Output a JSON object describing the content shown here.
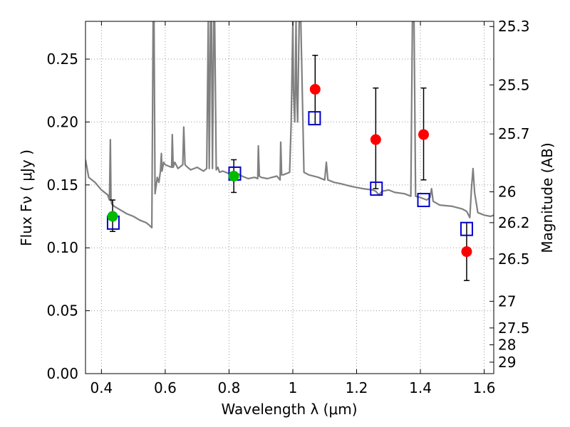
{
  "chart_data": {
    "type": "scatter",
    "xlabel": "Wavelength  λ (μm)",
    "ylabel": "Flux  Fν  ( μJy )",
    "y2label": "Magnitude (AB)",
    "xlim": [
      0.35,
      1.63
    ],
    "ylim": [
      0.0,
      0.28
    ],
    "grid": true,
    "x_ticks": [
      {
        "value": 0.4,
        "label": "0.4"
      },
      {
        "value": 0.6,
        "label": "0.6"
      },
      {
        "value": 0.8,
        "label": "0.8"
      },
      {
        "value": 1.0,
        "label": "1"
      },
      {
        "value": 1.2,
        "label": "1.2"
      },
      {
        "value": 1.4,
        "label": "1.4"
      },
      {
        "value": 1.6,
        "label": "1.6"
      }
    ],
    "y_ticks": [
      {
        "value": 0.0,
        "label": "0.00"
      },
      {
        "value": 0.05,
        "label": "0.05"
      },
      {
        "value": 0.1,
        "label": "0.10"
      },
      {
        "value": 0.15,
        "label": "0.15"
      },
      {
        "value": 0.2,
        "label": "0.20"
      },
      {
        "value": 0.25,
        "label": "0.25"
      }
    ],
    "y2_ticks": [
      {
        "flux": 0.2759,
        "label": "25.3"
      },
      {
        "flux": 0.2295,
        "label": "25.5"
      },
      {
        "flux": 0.1905,
        "label": "25.7"
      },
      {
        "flux": 0.1445,
        "label": "26"
      },
      {
        "flux": 0.12,
        "label": "26.2"
      },
      {
        "flux": 0.0912,
        "label": "26.5"
      },
      {
        "flux": 0.0575,
        "label": "27"
      },
      {
        "flux": 0.0363,
        "label": "27.5"
      },
      {
        "flux": 0.0229,
        "label": "28"
      },
      {
        "flux": 0.0091,
        "label": "29"
      }
    ],
    "colors": {
      "model": "#808080",
      "green": "#00bb00",
      "red": "#ff0000",
      "square": "#0000cc",
      "grid": "#999999"
    },
    "model_spectrum": {
      "x": [
        0.35,
        0.36,
        0.38,
        0.4,
        0.42,
        0.425,
        0.428,
        0.43,
        0.432,
        0.44,
        0.46,
        0.48,
        0.5,
        0.52,
        0.54,
        0.55,
        0.558,
        0.562,
        0.565,
        0.568,
        0.575,
        0.58,
        0.585,
        0.588,
        0.59,
        0.595,
        0.6,
        0.62,
        0.622,
        0.625,
        0.63,
        0.64,
        0.655,
        0.658,
        0.662,
        0.67,
        0.68,
        0.7,
        0.72,
        0.73,
        0.735,
        0.738,
        0.742,
        0.745,
        0.748,
        0.752,
        0.755,
        0.76,
        0.765,
        0.77,
        0.78,
        0.8,
        0.82,
        0.84,
        0.86,
        0.88,
        0.89,
        0.892,
        0.895,
        0.9,
        0.92,
        0.95,
        0.96,
        0.962,
        0.965,
        0.97,
        0.99,
        0.995,
        1.0,
        1.002,
        1.006,
        1.01,
        1.012,
        1.015,
        1.02,
        1.025,
        1.035,
        1.05,
        1.08,
        1.1,
        1.105,
        1.11,
        1.13,
        1.15,
        1.18,
        1.2,
        1.22,
        1.25,
        1.26,
        1.27,
        1.28,
        1.3,
        1.32,
        1.35,
        1.37,
        1.375,
        1.38,
        1.385,
        1.4,
        1.42,
        1.43,
        1.435,
        1.44,
        1.46,
        1.5,
        1.53,
        1.545,
        1.555,
        1.56,
        1.565,
        1.57,
        1.58,
        1.6,
        1.62,
        1.63
      ],
      "y": [
        0.17,
        0.156,
        0.152,
        0.146,
        0.142,
        0.138,
        0.186,
        0.138,
        0.135,
        0.133,
        0.13,
        0.127,
        0.125,
        0.122,
        0.12,
        0.118,
        0.116,
        0.28,
        0.28,
        0.143,
        0.156,
        0.152,
        0.161,
        0.175,
        0.161,
        0.168,
        0.166,
        0.164,
        0.19,
        0.164,
        0.168,
        0.163,
        0.166,
        0.196,
        0.166,
        0.164,
        0.162,
        0.164,
        0.161,
        0.163,
        0.28,
        0.163,
        0.28,
        0.28,
        0.163,
        0.28,
        0.28,
        0.162,
        0.164,
        0.16,
        0.161,
        0.159,
        0.16,
        0.157,
        0.155,
        0.156,
        0.155,
        0.181,
        0.157,
        0.156,
        0.155,
        0.157,
        0.154,
        0.184,
        0.158,
        0.158,
        0.16,
        0.2,
        0.28,
        0.225,
        0.2,
        0.28,
        0.225,
        0.2,
        0.28,
        0.28,
        0.16,
        0.158,
        0.156,
        0.154,
        0.168,
        0.154,
        0.152,
        0.151,
        0.149,
        0.148,
        0.147,
        0.146,
        0.145,
        0.142,
        0.145,
        0.146,
        0.144,
        0.143,
        0.141,
        0.28,
        0.28,
        0.141,
        0.14,
        0.138,
        0.14,
        0.147,
        0.137,
        0.134,
        0.133,
        0.131,
        0.129,
        0.124,
        0.147,
        0.163,
        0.144,
        0.128,
        0.126,
        0.125,
        0.126
      ]
    },
    "series": [
      {
        "marker": "circle",
        "color": "green",
        "points": [
          {
            "x": 0.435,
            "y": 0.125,
            "lo": 0.113,
            "hi": 0.138
          },
          {
            "x": 0.815,
            "y": 0.157,
            "lo": 0.144,
            "hi": 0.17
          }
        ]
      },
      {
        "marker": "circle",
        "color": "red",
        "points": [
          {
            "x": 1.07,
            "y": 0.226,
            "lo": 0.198,
            "hi": 0.253
          },
          {
            "x": 1.26,
            "y": 0.186,
            "lo": 0.147,
            "hi": 0.227
          },
          {
            "x": 1.41,
            "y": 0.19,
            "lo": 0.154,
            "hi": 0.227
          },
          {
            "x": 1.545,
            "y": 0.097,
            "lo": 0.074,
            "hi": 0.12
          }
        ]
      },
      {
        "marker": "square",
        "color": "square",
        "points": [
          {
            "x": 0.437,
            "y": 0.12
          },
          {
            "x": 0.818,
            "y": 0.159
          },
          {
            "x": 1.068,
            "y": 0.203
          },
          {
            "x": 1.262,
            "y": 0.147
          },
          {
            "x": 1.41,
            "y": 0.138
          },
          {
            "x": 1.545,
            "y": 0.115
          }
        ]
      }
    ]
  }
}
